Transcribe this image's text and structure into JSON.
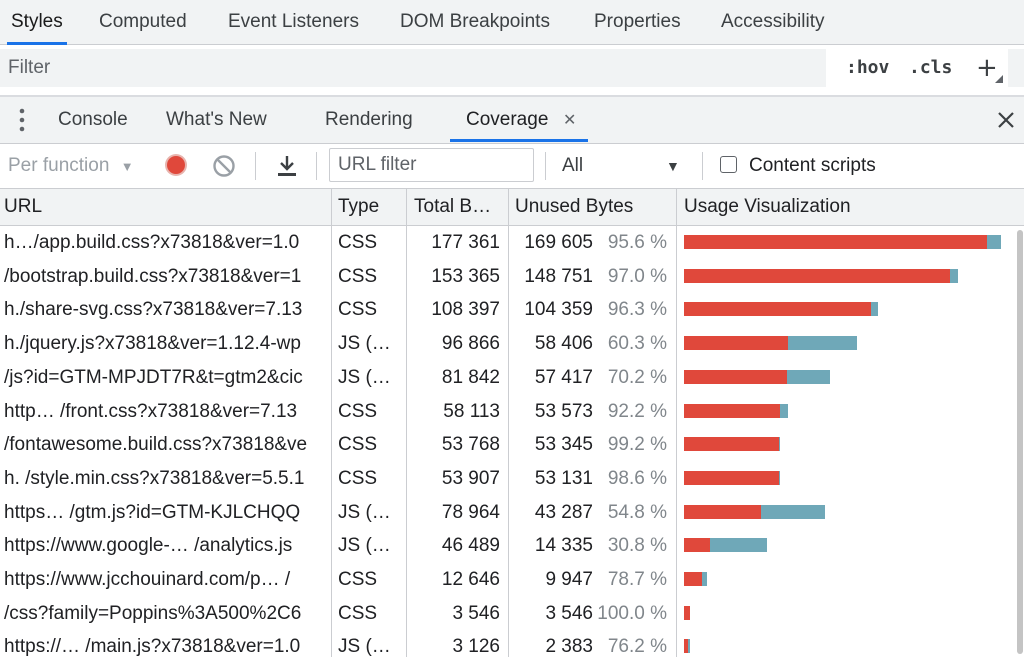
{
  "top_tabs": [
    "Styles",
    "Computed",
    "Event Listeners",
    "DOM Breakpoints",
    "Properties",
    "Accessibility"
  ],
  "filter": {
    "placeholder": "Filter",
    "hov": ":hov",
    "cls": ".cls",
    "plus": "+"
  },
  "drawer_tabs": [
    "Console",
    "What's New",
    "Rendering",
    "Coverage"
  ],
  "drawer_close_tab": "✕",
  "drawer_close": "✕",
  "toolbar": {
    "mode": "Per function",
    "mode_arrow": "▼",
    "url_filter_placeholder": "URL filter",
    "type_select": "All",
    "type_arrow": "▼",
    "content_scripts_label": "Content scripts"
  },
  "colors": {
    "used": "#e0483b",
    "unused": "#6fa8b8",
    "accent": "#1a73e8",
    "record": "#e0483b"
  },
  "icons": [
    "more-vertical-icon",
    "record-icon",
    "clear-icon",
    "download-icon",
    "close-icon",
    "chevron-down-icon"
  ],
  "table": {
    "headers": [
      "URL",
      "Type",
      "Total B…",
      "Unused Bytes",
      "Usage Visualization"
    ],
    "rows": [
      {
        "url": "h…/app.build.css?x73818&ver=1.0",
        "type": "CSS",
        "total": "177 361",
        "unused": "169 605",
        "pct": "95.6 %",
        "total_bytes": 177361,
        "unused_bytes": 169605
      },
      {
        "url": "/bootstrap.build.css?x73818&ver=1",
        "type": "CSS",
        "total": "153 365",
        "unused": "148 751",
        "pct": "97.0 %",
        "total_bytes": 153365,
        "unused_bytes": 148751
      },
      {
        "url": "h./share-svg.css?x73818&ver=7.13",
        "type": "CSS",
        "total": "108 397",
        "unused": "104 359",
        "pct": "96.3 %",
        "total_bytes": 108397,
        "unused_bytes": 104359
      },
      {
        "url": "h./jquery.js?x73818&ver=1.12.4-wp",
        "type": "JS (…",
        "total": "96 866",
        "unused": "58 406",
        "pct": "60.3 %",
        "total_bytes": 96866,
        "unused_bytes": 58406
      },
      {
        "url": "/js?id=GTM-MPJDT7R&t=gtm2&cic",
        "type": "JS (…",
        "total": "81 842",
        "unused": "57 417",
        "pct": "70.2 %",
        "total_bytes": 81842,
        "unused_bytes": 57417
      },
      {
        "url": "http… /front.css?x73818&ver=7.13",
        "type": "CSS",
        "total": "58 113",
        "unused": "53 573",
        "pct": "92.2 %",
        "total_bytes": 58113,
        "unused_bytes": 53573
      },
      {
        "url": "/fontawesome.build.css?x73818&ve",
        "type": "CSS",
        "total": "53 768",
        "unused": "53 345",
        "pct": "99.2 %",
        "total_bytes": 53768,
        "unused_bytes": 53345
      },
      {
        "url": "h. /style.min.css?x73818&ver=5.5.1",
        "type": "CSS",
        "total": "53 907",
        "unused": "53 131",
        "pct": "98.6 %",
        "total_bytes": 53907,
        "unused_bytes": 53131
      },
      {
        "url": "https… /gtm.js?id=GTM-KJLCHQQ",
        "type": "JS (…",
        "total": "78 964",
        "unused": "43 287",
        "pct": "54.8 %",
        "total_bytes": 78964,
        "unused_bytes": 43287
      },
      {
        "url": "https://www.google-… /analytics.js",
        "type": "JS (…",
        "total": "46 489",
        "unused": "14 335",
        "pct": "30.8 %",
        "total_bytes": 46489,
        "unused_bytes": 14335
      },
      {
        "url": "https://www.jcchouinard.com/p… /",
        "type": "CSS",
        "total": "12 646",
        "unused": "9 947",
        "pct": "78.7 %",
        "total_bytes": 12646,
        "unused_bytes": 9947
      },
      {
        "url": "/css?family=Poppins%3A500%2C6",
        "type": "CSS",
        "total": "3 546",
        "unused": "3 546",
        "pct": "100.0 %",
        "total_bytes": 3546,
        "unused_bytes": 3546
      },
      {
        "url": "https://… /main.js?x73818&ver=1.0",
        "type": "JS (…",
        "total": "3 126",
        "unused": "2 383",
        "pct": "76.2 %",
        "total_bytes": 3126,
        "unused_bytes": 2383
      }
    ]
  }
}
